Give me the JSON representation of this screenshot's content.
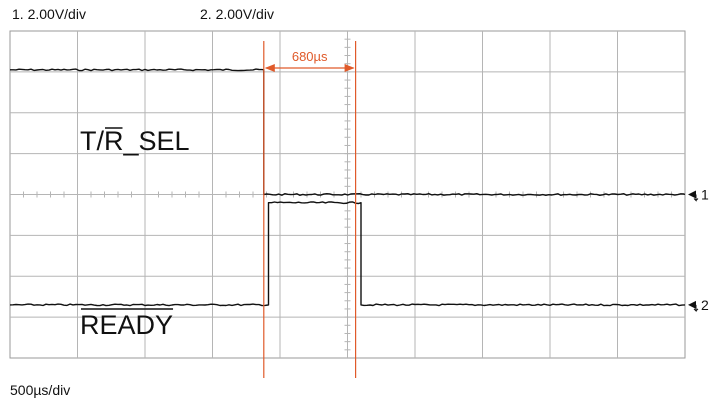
{
  "header": {
    "ch1_scale": "1.   2.00V/div",
    "ch2_scale": "2.   2.00V/div"
  },
  "footer": {
    "timebase": "500µs/div"
  },
  "colors": {
    "trace": "#111111",
    "grid": "#b5b5b5",
    "cursor": "#e05a2a",
    "background": "#ffffff"
  },
  "chart_data": {
    "type": "line",
    "title": "",
    "xlabel": "",
    "ylabel": "",
    "x_units": "µs",
    "y_units": "divisions",
    "xlim": [
      0,
      5000
    ],
    "ylim": [
      -4,
      4
    ],
    "grid": true,
    "divisions": {
      "x": 10,
      "y": 8
    },
    "timebase": "500µs/div",
    "series": [
      {
        "name": "T/R_SEL",
        "label_overbar": "R",
        "channel_marker": "1",
        "ref_level": 0,
        "x": [
          0,
          1880,
          1880,
          5000
        ],
        "y": [
          3.05,
          3.05,
          0,
          0
        ]
      },
      {
        "name": "READY",
        "label_overbar": "READY",
        "channel_marker": "2",
        "ref_level": -2.7,
        "x": [
          0,
          1915,
          1915,
          2600,
          2600,
          5000
        ],
        "y": [
          -2.7,
          -2.7,
          -0.2,
          -0.2,
          -2.7,
          -2.7
        ]
      }
    ],
    "annotations": [
      {
        "type": "time-cursors",
        "x1": 1880,
        "x2": 2560,
        "label": "680µs"
      }
    ]
  }
}
